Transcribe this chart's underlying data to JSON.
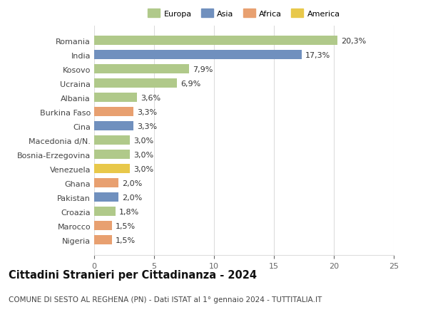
{
  "countries": [
    "Nigeria",
    "Marocco",
    "Croazia",
    "Pakistan",
    "Ghana",
    "Venezuela",
    "Bosnia-Erzegovina",
    "Macedonia d/N.",
    "Cina",
    "Burkina Faso",
    "Albania",
    "Ucraina",
    "Kosovo",
    "India",
    "Romania"
  ],
  "values": [
    1.5,
    1.5,
    1.8,
    2.0,
    2.0,
    3.0,
    3.0,
    3.0,
    3.3,
    3.3,
    3.6,
    6.9,
    7.9,
    17.3,
    20.3
  ],
  "labels": [
    "1,5%",
    "1,5%",
    "1,8%",
    "2,0%",
    "2,0%",
    "3,0%",
    "3,0%",
    "3,0%",
    "3,3%",
    "3,3%",
    "3,6%",
    "6,9%",
    "7,9%",
    "17,3%",
    "20,3%"
  ],
  "continents": [
    "Africa",
    "Africa",
    "Europa",
    "Asia",
    "Africa",
    "America",
    "Europa",
    "Europa",
    "Asia",
    "Africa",
    "Europa",
    "Europa",
    "Europa",
    "Asia",
    "Europa"
  ],
  "colors": {
    "Europa": "#b0c98a",
    "Asia": "#7090be",
    "Africa": "#e8a070",
    "America": "#e8c84a"
  },
  "legend_order": [
    "Europa",
    "Asia",
    "Africa",
    "America"
  ],
  "title": "Cittadini Stranieri per Cittadinanza - 2024",
  "subtitle": "COMUNE DI SESTO AL REGHENA (PN) - Dati ISTAT al 1° gennaio 2024 - TUTTITALIA.IT",
  "xlim": [
    0,
    25
  ],
  "xticks": [
    0,
    5,
    10,
    15,
    20,
    25
  ],
  "background_color": "#ffffff",
  "grid_color": "#dddddd",
  "bar_height": 0.65,
  "label_fontsize": 8.0,
  "tick_fontsize": 8.0,
  "title_fontsize": 10.5,
  "subtitle_fontsize": 7.5
}
